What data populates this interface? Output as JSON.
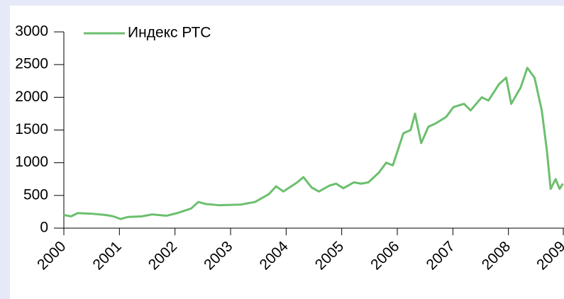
{
  "chart_data": {
    "type": "line",
    "series": [
      {
        "name": "Индекс РТС",
        "color": "#6cbf6e",
        "x": [
          2000,
          2000.13,
          2000.25,
          2000.51,
          2000.76,
          2000.89,
          2001.02,
          2001.15,
          2001.4,
          2001.59,
          2001.85,
          2002.04,
          2002.29,
          2002.42,
          2002.55,
          2002.8,
          2003.18,
          2003.44,
          2003.69,
          2003.82,
          2003.95,
          2004.2,
          2004.31,
          2004.46,
          2004.59,
          2004.78,
          2004.9,
          2005.03,
          2005.22,
          2005.35,
          2005.48,
          2005.67,
          2005.8,
          2005.92,
          2006.11,
          2006.24,
          2006.32,
          2006.43,
          2006.56,
          2006.69,
          2006.88,
          2007.01,
          2007.2,
          2007.32,
          2007.52,
          2007.64,
          2007.83,
          2007.96,
          2008.05,
          2008.22,
          2008.34,
          2008.47,
          2008.6,
          2008.69,
          2008.76,
          2008.85,
          2008.92,
          2008.98
        ],
        "values": [
          200,
          180,
          230,
          220,
          200,
          180,
          140,
          170,
          180,
          210,
          190,
          230,
          300,
          400,
          370,
          350,
          360,
          400,
          520,
          640,
          560,
          700,
          780,
          620,
          560,
          650,
          680,
          610,
          700,
          680,
          700,
          850,
          1000,
          960,
          1450,
          1500,
          1750,
          1300,
          1550,
          1600,
          1700,
          1850,
          1900,
          1800,
          2000,
          1950,
          2200,
          2300,
          1900,
          2150,
          2450,
          2300,
          1800,
          1200,
          600,
          750,
          600,
          680
        ]
      }
    ],
    "xlim": [
      2000,
      2009
    ],
    "xticks": [
      2000,
      2001,
      2002,
      2003,
      2004,
      2005,
      2006,
      2007,
      2008,
      2009
    ],
    "ylim": [
      0,
      3000
    ],
    "yticks": [
      0,
      500,
      1000,
      1500,
      2000,
      2500,
      3000
    ],
    "legend": "top-left"
  }
}
